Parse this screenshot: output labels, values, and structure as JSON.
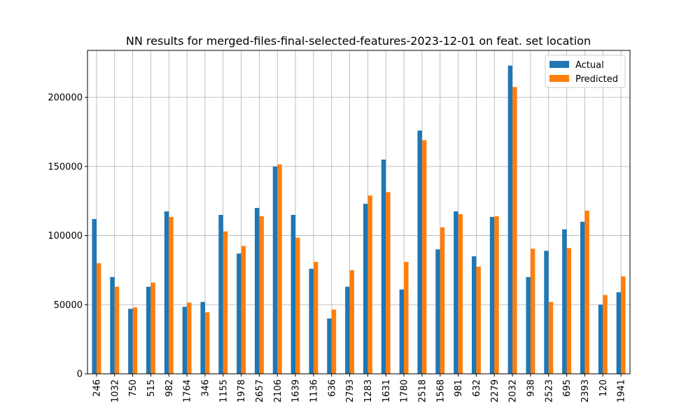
{
  "chart_data": {
    "type": "bar",
    "title": "NN results for merged-files-final-selected-features-2023-12-01 on feat. set location",
    "xlabel": "",
    "ylabel": "",
    "ylim": [
      0,
      234000
    ],
    "yticks": [
      0,
      50000,
      100000,
      150000,
      200000
    ],
    "grid": true,
    "legend_position": "top-right",
    "categories": [
      "246",
      "1032",
      "750",
      "515",
      "982",
      "1764",
      "346",
      "1155",
      "1978",
      "2657",
      "2106",
      "1639",
      "1136",
      "636",
      "2793",
      "1283",
      "1631",
      "1780",
      "2518",
      "1568",
      "981",
      "632",
      "2279",
      "2032",
      "938",
      "2523",
      "695",
      "2393",
      "120",
      "1941"
    ],
    "series": [
      {
        "name": "Actual",
        "color": "#1f77b4",
        "values": [
          112000,
          70000,
          47000,
          63000,
          117500,
          48500,
          52000,
          115000,
          87000,
          120000,
          150000,
          115000,
          76000,
          40000,
          63000,
          123000,
          155000,
          61000,
          176000,
          90000,
          117500,
          85000,
          113500,
          223000,
          70000,
          89000,
          104500,
          110000,
          50000,
          59000
        ]
      },
      {
        "name": "Predicted",
        "color": "#ff7f0e",
        "values": [
          80000,
          63000,
          48000,
          66000,
          113500,
          51500,
          44500,
          103000,
          92500,
          114000,
          151500,
          98500,
          81000,
          46500,
          75000,
          129000,
          131500,
          81000,
          169000,
          106000,
          115500,
          77500,
          114000,
          207500,
          90500,
          52000,
          91000,
          118000,
          57000,
          70500
        ]
      }
    ]
  }
}
